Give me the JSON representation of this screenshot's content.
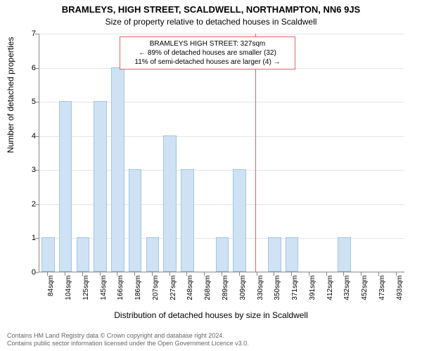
{
  "chart": {
    "type": "histogram",
    "title_main": "BRAMLEYS, HIGH STREET, SCALDWELL, NORTHAMPTON, NN6 9JS",
    "title_sub": "Size of property relative to detached houses in Scaldwell",
    "ylabel": "Number of detached properties",
    "xlabel": "Distribution of detached houses by size in Scaldwell",
    "background_color": "#ffffff",
    "grid_color": "#e5e5e5",
    "axis_color": "#888888",
    "bar_fill": "#cfe2f3",
    "bar_border": "#9fc5e8",
    "marker_color": "#e06666",
    "title_fontsize": 13,
    "label_fontsize": 12,
    "tick_fontsize": 11,
    "y": {
      "min": 0,
      "max": 7,
      "ticks": [
        0,
        1,
        2,
        3,
        4,
        5,
        6,
        7
      ]
    },
    "x": {
      "categories": [
        "84sqm",
        "104sqm",
        "125sqm",
        "145sqm",
        "166sqm",
        "186sqm",
        "207sqm",
        "227sqm",
        "248sqm",
        "268sqm",
        "289sqm",
        "309sqm",
        "330sqm",
        "350sqm",
        "371sqm",
        "391sqm",
        "412sqm",
        "432sqm",
        "452sqm",
        "473sqm",
        "493sqm"
      ]
    },
    "values": [
      1,
      5,
      1,
      5,
      6,
      3,
      1,
      4,
      3,
      0,
      1,
      3,
      0,
      1,
      1,
      0,
      0,
      1,
      0,
      0,
      0
    ],
    "marker": {
      "position_index": 11.9,
      "value_sqm": 327
    },
    "annotation": {
      "lines": [
        "BRAMLEYS HIGH STREET: 327sqm",
        "← 89% of detached houses are smaller (32)",
        "11% of semi-detached houses are larger (4) →"
      ]
    }
  },
  "footer": {
    "line1": "Contains HM Land Registry data © Crown copyright and database right 2024.",
    "line2": "Contains public sector information licensed under the Open Government Licence v3.0."
  }
}
